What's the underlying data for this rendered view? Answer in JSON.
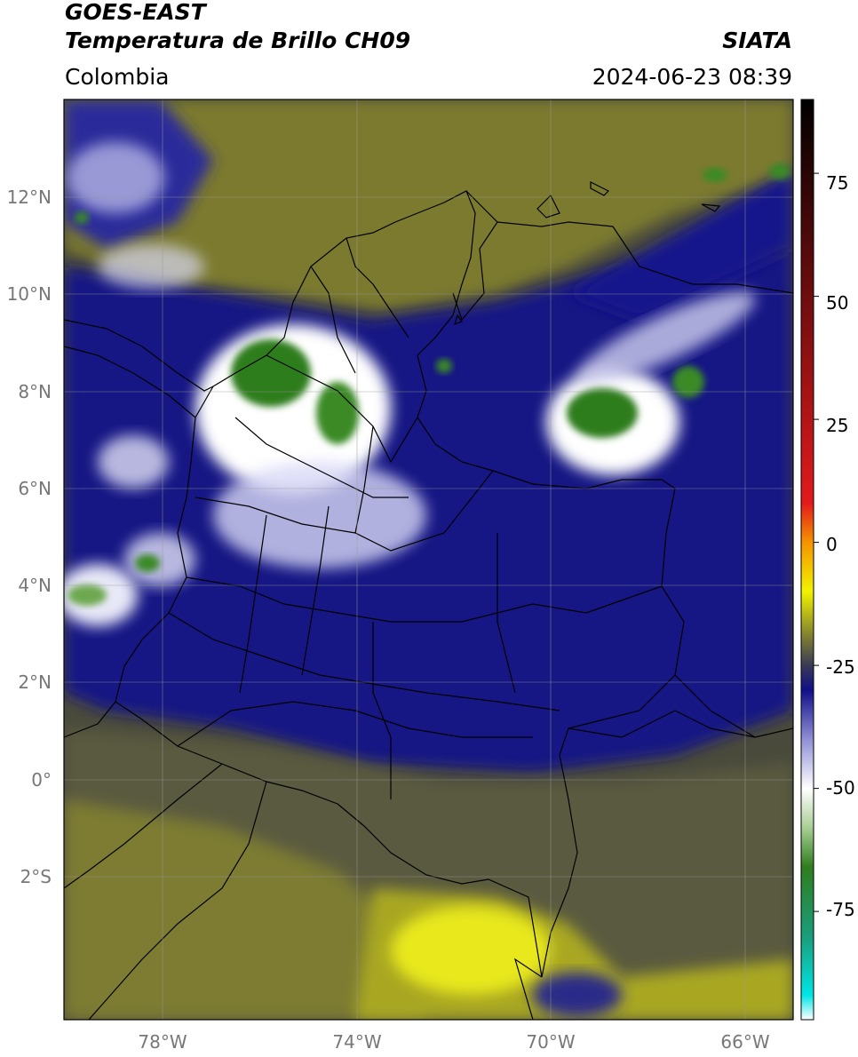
{
  "header": {
    "title_line1": "GOES-EAST",
    "title_line2": "Temperatura de Brillo CH09",
    "source": "SIATA",
    "region": "Colombia",
    "timestamp": "2024-06-23 08:39"
  },
  "map": {
    "latitude_labels": [
      "12°N",
      "10°N",
      "8°N",
      "6°N",
      "4°N",
      "2°N",
      "0°",
      "2°S"
    ],
    "longitude_labels": [
      "78°W",
      "74°W",
      "70°W",
      "66°W"
    ],
    "extent": {
      "lon_min": -80,
      "lon_max": -65,
      "lat_min": -5,
      "lat_max": 14
    }
  },
  "colorbar": {
    "tick_labels": [
      "75",
      "50",
      "25",
      "0",
      "-25",
      "-50",
      "-75"
    ],
    "range": [
      -97,
      90
    ],
    "stops": [
      {
        "value": -97,
        "color": "#ffffff"
      },
      {
        "value": -92,
        "color": "#00e5e5"
      },
      {
        "value": -80,
        "color": "#1a9e7a"
      },
      {
        "value": -66,
        "color": "#2f7d1e"
      },
      {
        "value": -58,
        "color": "#a8cf95"
      },
      {
        "value": -50,
        "color": "#ffffff"
      },
      {
        "value": -40,
        "color": "#8f8fd6"
      },
      {
        "value": -30,
        "color": "#101089"
      },
      {
        "value": -25,
        "color": "#3a3a56"
      },
      {
        "value": -18,
        "color": "#8c8c2b"
      },
      {
        "value": -10,
        "color": "#f2f200"
      },
      {
        "value": 0,
        "color": "#f59400"
      },
      {
        "value": 8,
        "color": "#e31a1c"
      },
      {
        "value": 90,
        "color": "#000000"
      }
    ]
  },
  "colors": {
    "cold_cloud": "#2f7d1e",
    "high_cloud": "#ffffff",
    "mid_cloud": "#101089",
    "low_cloud": "#555545",
    "warm": "#c8c81a",
    "border": "#000000",
    "grid": "#9a9a9a"
  }
}
